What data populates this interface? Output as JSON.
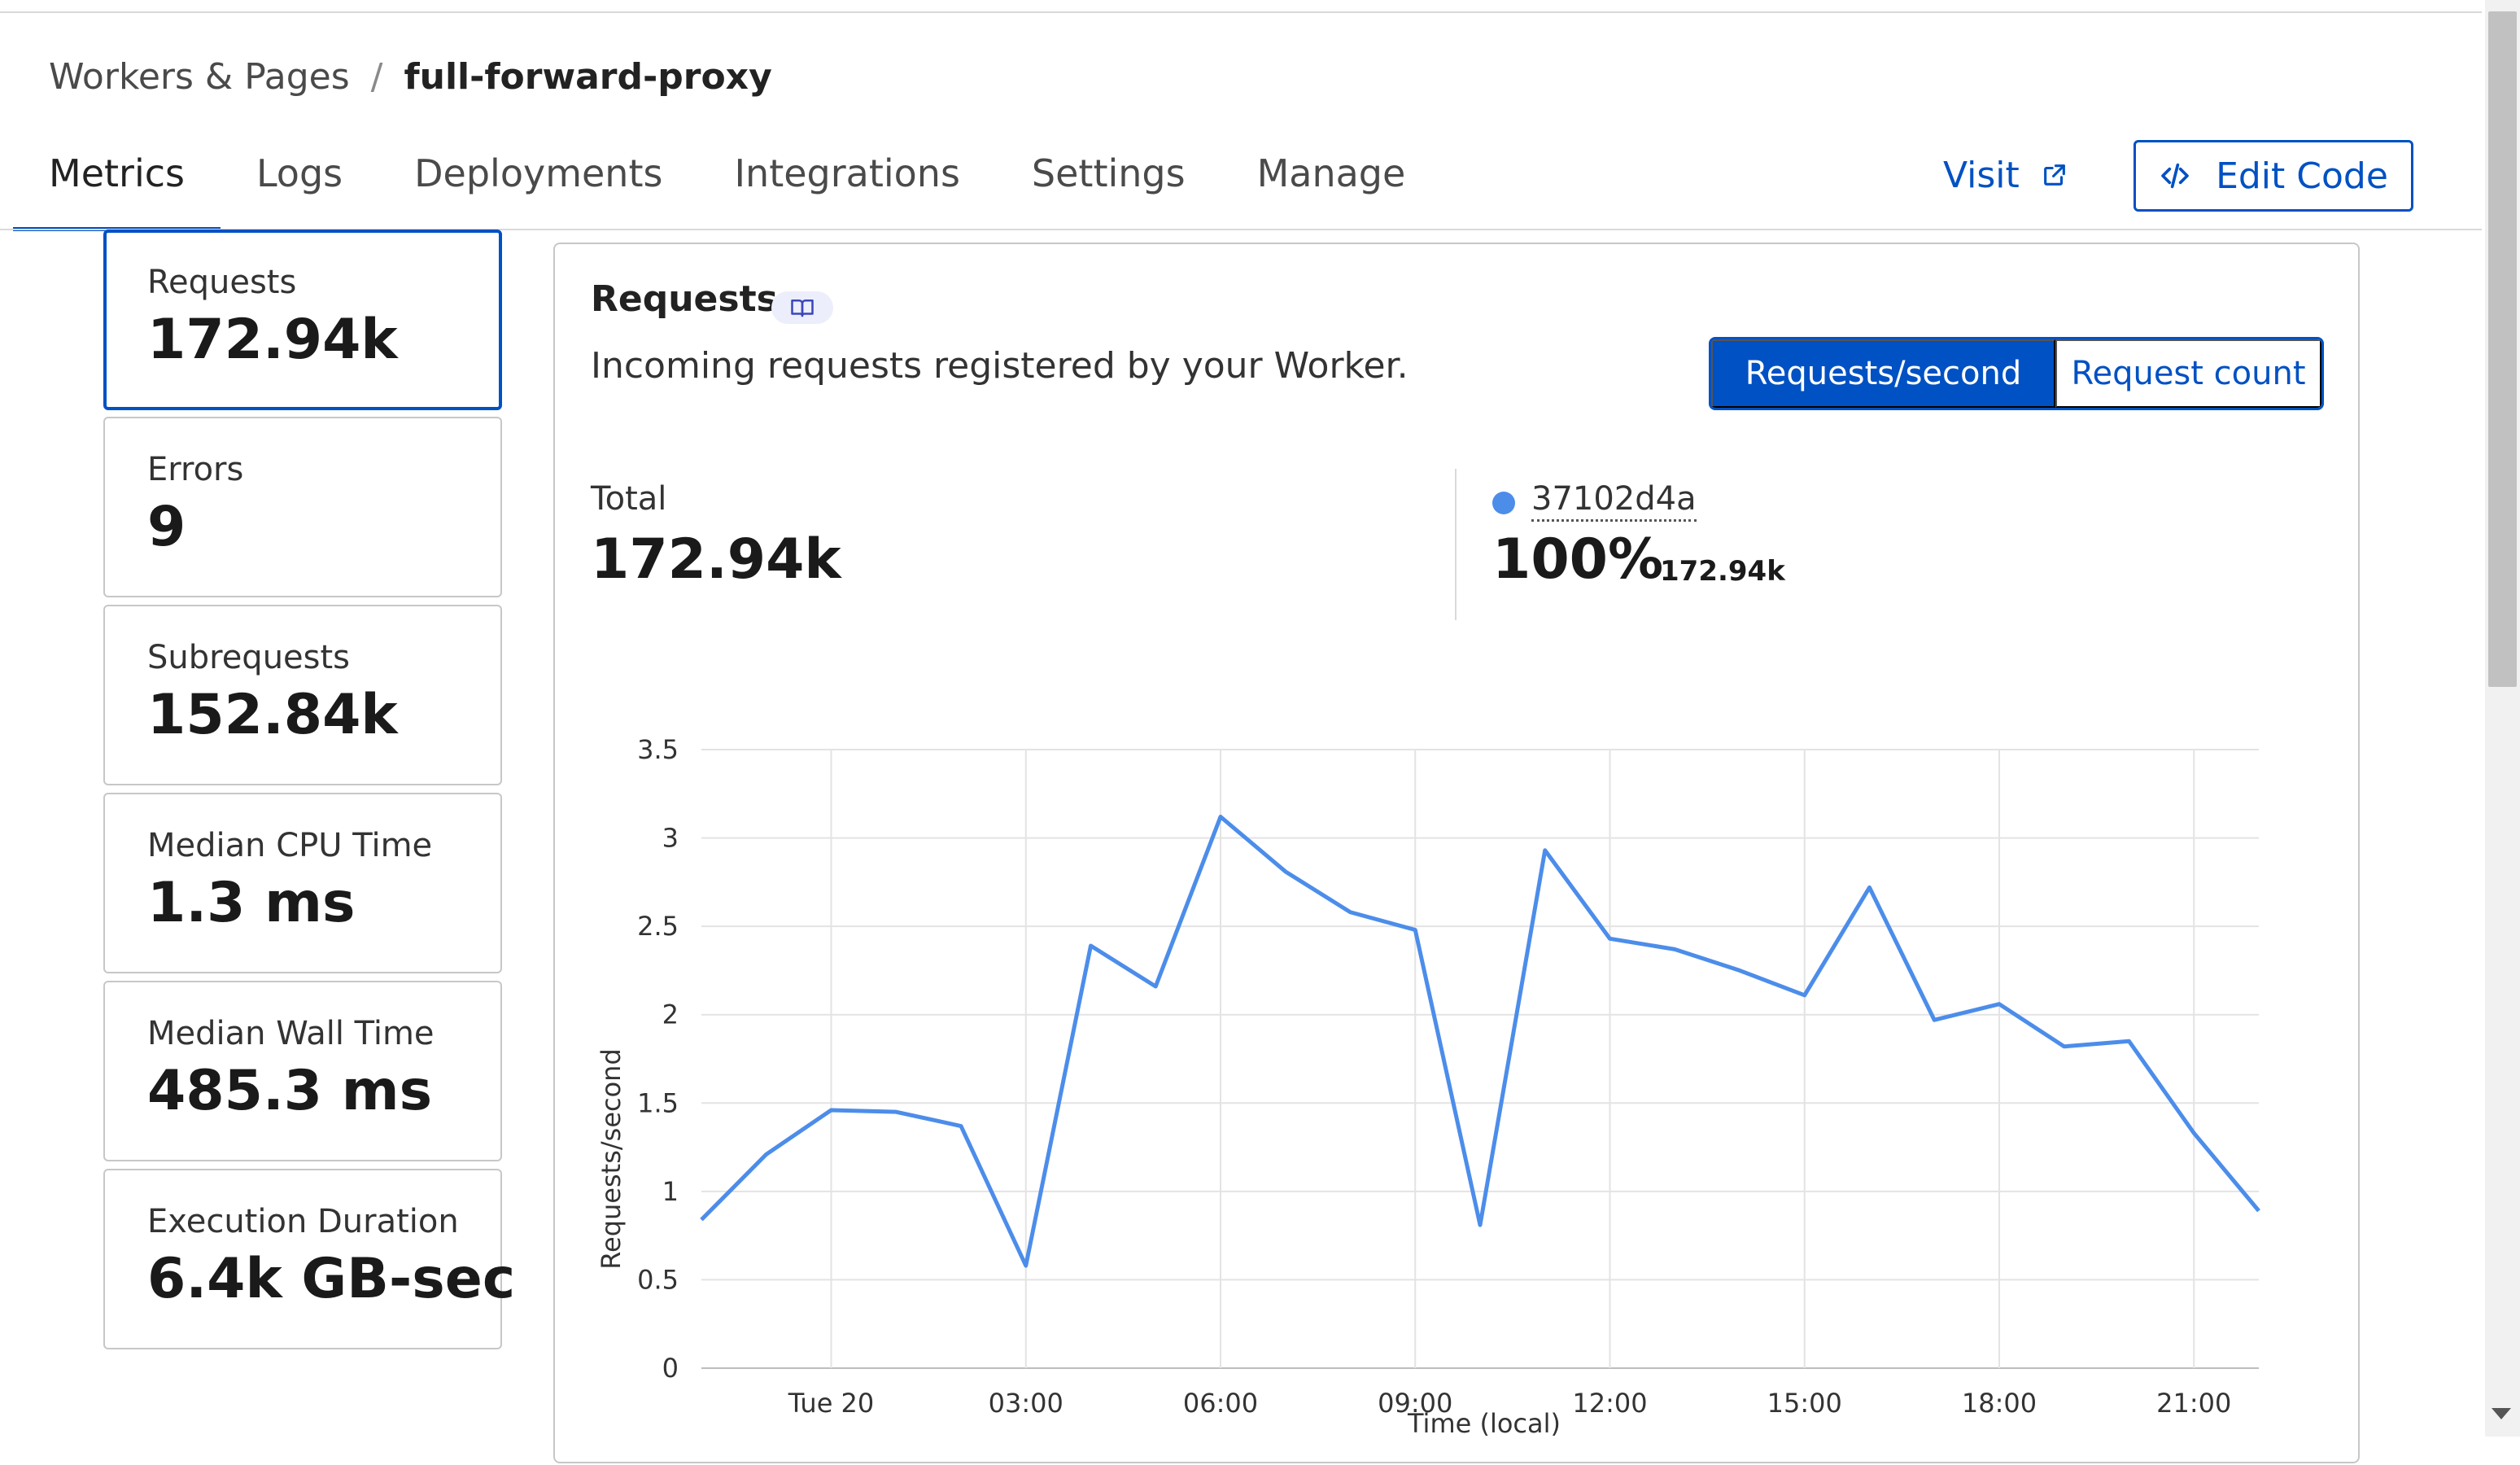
{
  "breadcrumb": {
    "parent": "Workers & Pages",
    "separator": "/",
    "current": "full-forward-proxy"
  },
  "tabs": [
    {
      "label": "Metrics",
      "active": true
    },
    {
      "label": "Logs",
      "active": false
    },
    {
      "label": "Deployments",
      "active": false
    },
    {
      "label": "Integrations",
      "active": false
    },
    {
      "label": "Settings",
      "active": false
    },
    {
      "label": "Manage",
      "active": false
    }
  ],
  "header_actions": {
    "visit_label": "Visit",
    "edit_code_label": "Edit Code"
  },
  "metrics": [
    {
      "label": "Requests",
      "value": "172.94k",
      "active": true
    },
    {
      "label": "Errors",
      "value": "9",
      "active": false
    },
    {
      "label": "Subrequests",
      "value": "152.84k",
      "active": false
    },
    {
      "label": "Median CPU Time",
      "value": "1.3 ms",
      "active": false
    },
    {
      "label": "Median Wall Time",
      "value": "485.3 ms",
      "active": false
    },
    {
      "label": "Execution Duration",
      "value": "6.4k GB-sec",
      "active": false
    }
  ],
  "panel": {
    "title": "Requests",
    "description": "Incoming requests registered by your Worker.",
    "toggle": {
      "selected": "Requests/second",
      "other": "Request count"
    },
    "total_label": "Total",
    "total_value": "172.94k",
    "series": {
      "name": "37102d4a",
      "percent": "100%",
      "count": "172.94k"
    }
  },
  "colors": {
    "accent": "#0051c3",
    "series_line": "#4c8dea",
    "border": "#c7c7c7",
    "grid": "#e3e3e3"
  },
  "chart_data": {
    "type": "line",
    "xlabel": "Time (local)",
    "ylabel": "Requests/second",
    "ylim": [
      0,
      3.5
    ],
    "yticks": [
      "0",
      "0.5",
      "1",
      "1.5",
      "2",
      "2.5",
      "3",
      "3.5"
    ],
    "xticks": [
      {
        "label": "Tue 20",
        "hour": 0
      },
      {
        "label": "03:00",
        "hour": 3
      },
      {
        "label": "06:00",
        "hour": 6
      },
      {
        "label": "09:00",
        "hour": 9
      },
      {
        "label": "12:00",
        "hour": 12
      },
      {
        "label": "15:00",
        "hour": 15
      },
      {
        "label": "18:00",
        "hour": 18
      },
      {
        "label": "21:00",
        "hour": 21
      }
    ],
    "x_range_hours": [
      -2,
      22
    ],
    "series": [
      {
        "name": "37102d4a",
        "x_hours": [
          -2,
          -1,
          0,
          1,
          2,
          3,
          4,
          5,
          6,
          7,
          8,
          9,
          10,
          11,
          12,
          13,
          14,
          15,
          16,
          17,
          18,
          19,
          20,
          21,
          22
        ],
        "values": [
          0.84,
          1.21,
          1.46,
          1.45,
          1.37,
          0.58,
          2.39,
          2.16,
          3.12,
          2.81,
          2.58,
          2.48,
          0.81,
          2.93,
          2.43,
          2.37,
          2.25,
          2.11,
          2.72,
          1.97,
          2.06,
          1.82,
          1.85,
          1.33,
          0.89
        ]
      }
    ]
  }
}
